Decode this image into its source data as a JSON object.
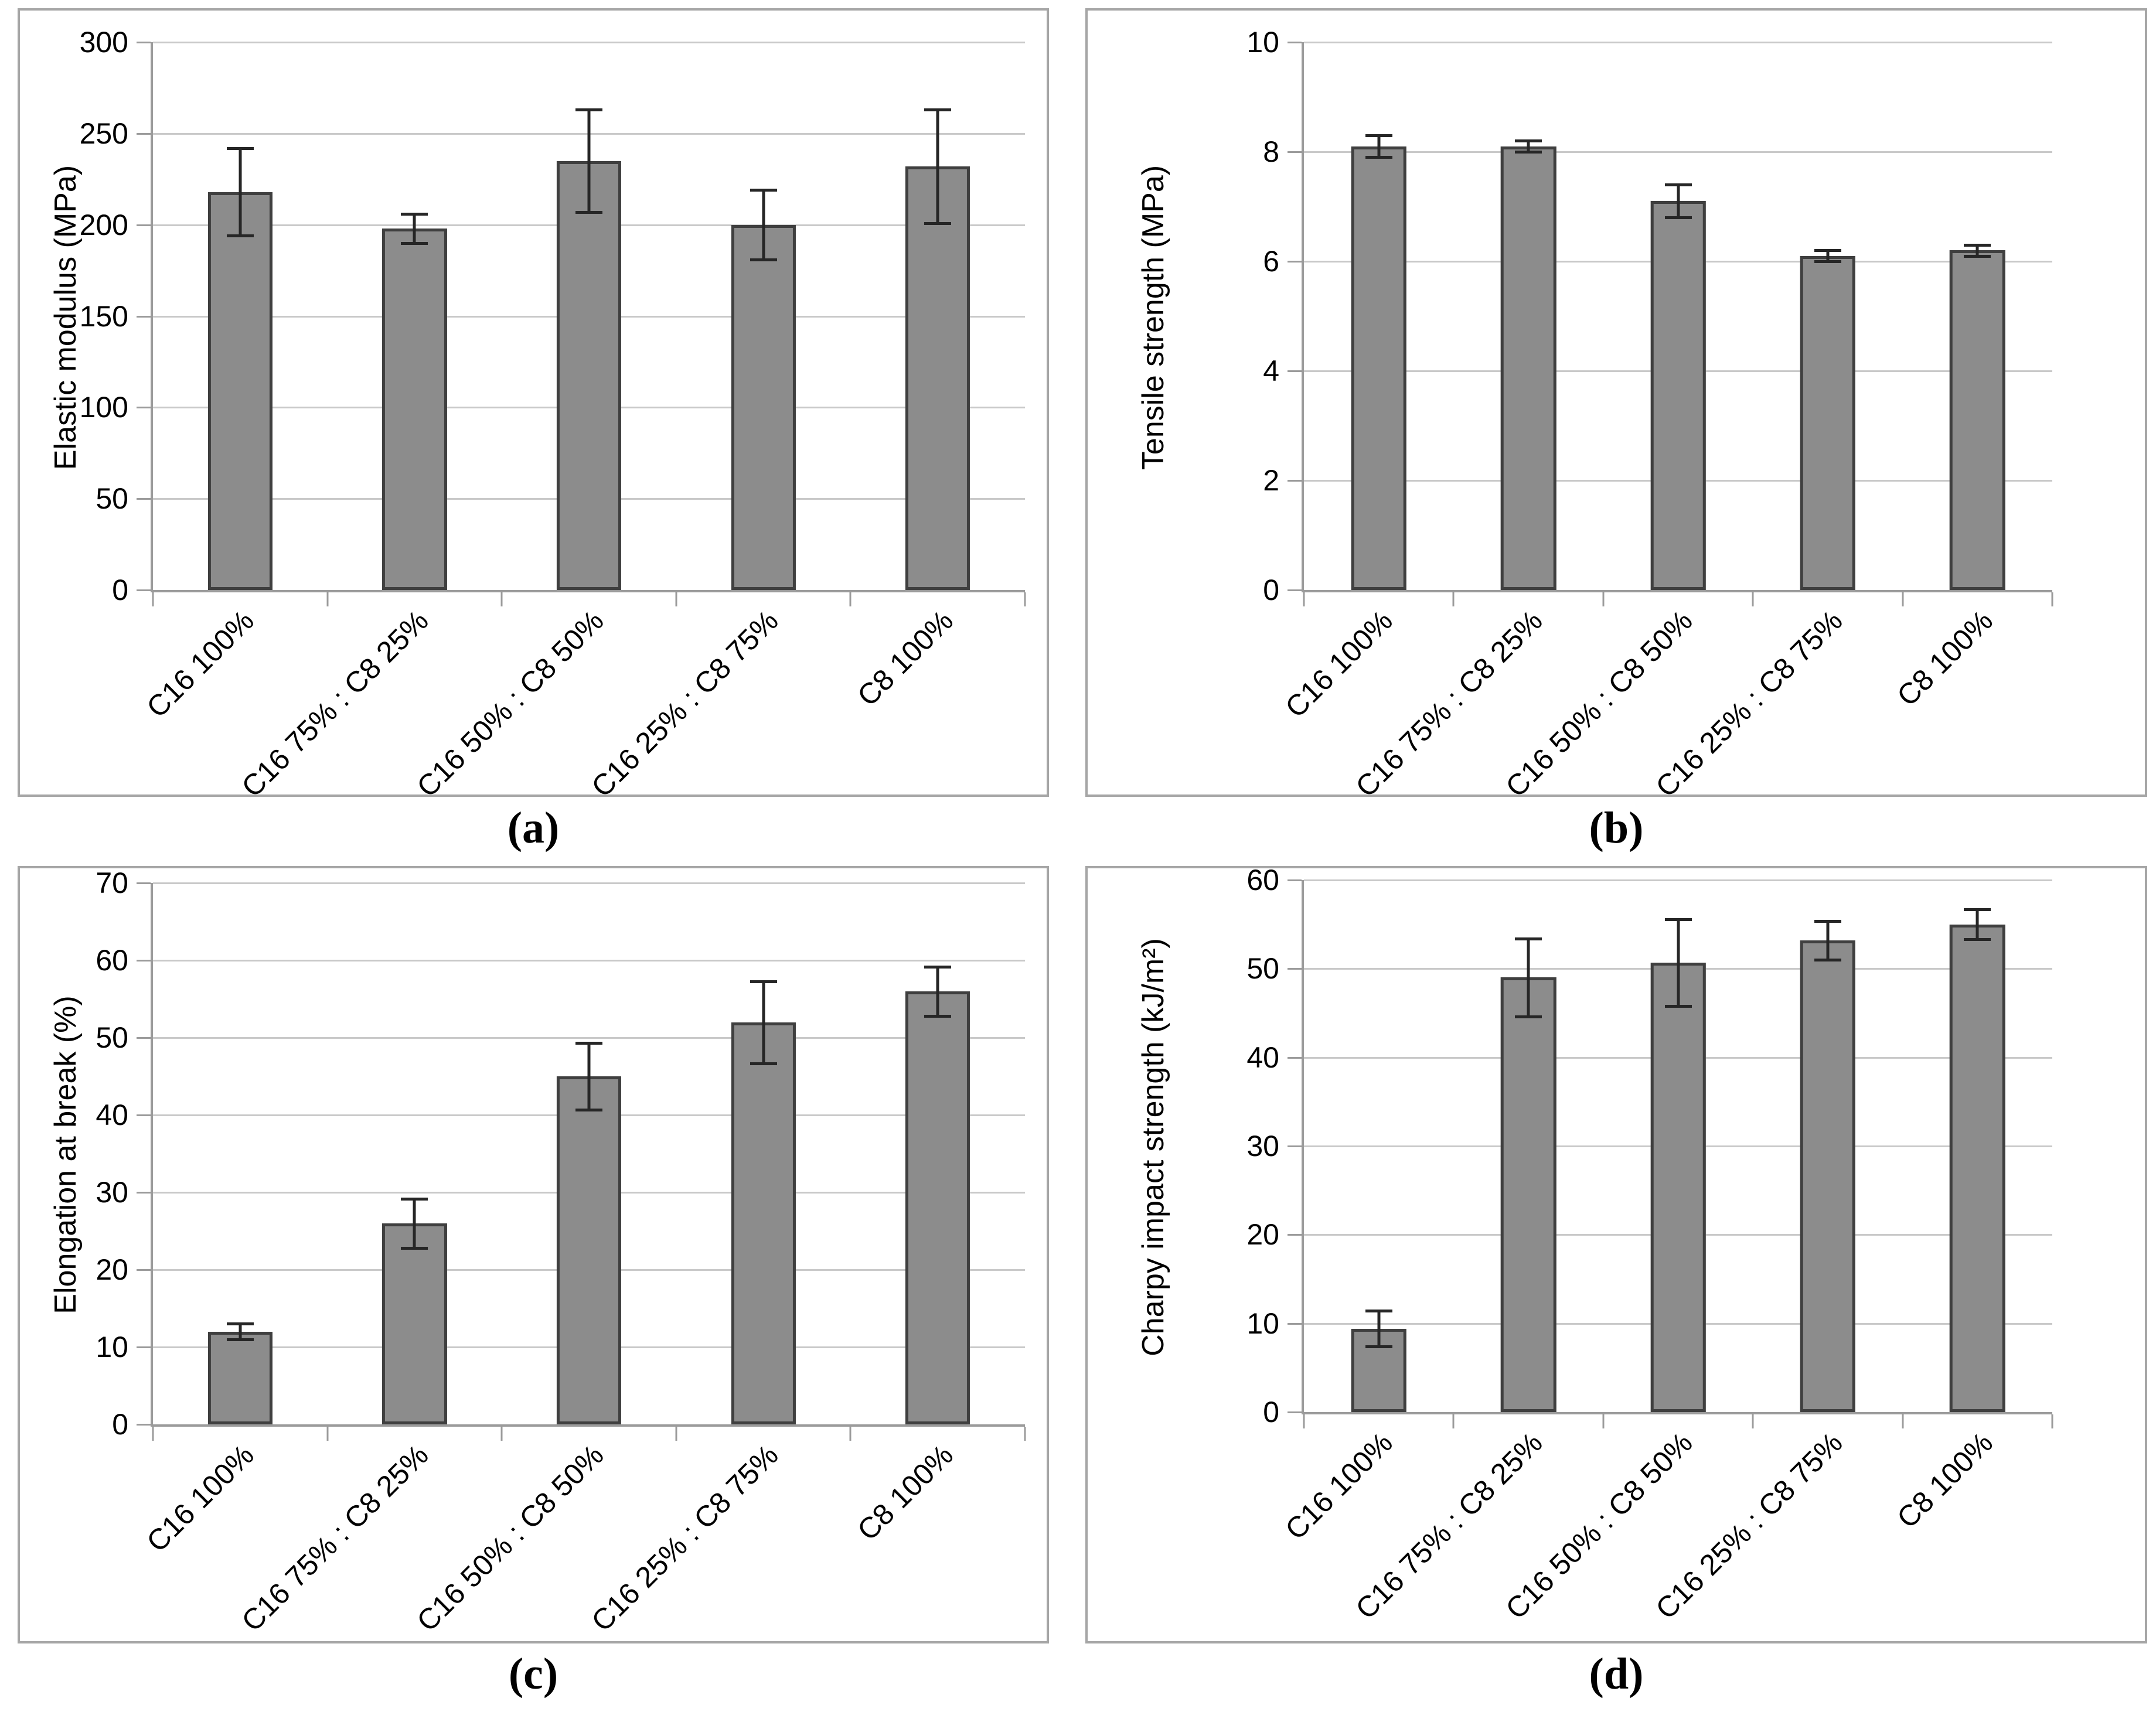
{
  "figure": {
    "panels": [
      {
        "tag": "(a)"
      },
      {
        "tag": "(b)"
      },
      {
        "tag": "(c)"
      },
      {
        "tag": "(d)"
      }
    ]
  },
  "colors": {
    "bar_fill": "#8c8c8c",
    "bar_border": "#3f3f3f",
    "error_bar": "#262626",
    "gridline": "#c9c9c9",
    "axis_line": "#9b9b9b",
    "panel_border": "#a6a6a6",
    "text": "#000000"
  },
  "chart_data": [
    {
      "id": "a",
      "type": "bar",
      "title": "",
      "xlabel": "",
      "ylabel": "Elastic modulus (MPa)",
      "categories": [
        "C16 100%",
        "C16 75% : C8 25%",
        "C16 50% : C8 50%",
        "C16 25% : C8 75%",
        "C8 100%"
      ],
      "values": [
        218,
        198,
        235,
        200,
        232
      ],
      "errors": [
        24,
        8,
        28,
        19,
        31
      ],
      "ylim": [
        0,
        300
      ],
      "ytick_step": 50,
      "grid": true,
      "legend": "none"
    },
    {
      "id": "b",
      "type": "bar",
      "title": "",
      "xlabel": "",
      "ylabel": "Tensile strength (MPa)",
      "categories": [
        "C16 100%",
        "C16 75% : C8 25%",
        "C16 50% : C8 50%",
        "C16 25% : C8 75%",
        "C8 100%"
      ],
      "values": [
        8.1,
        8.1,
        7.1,
        6.1,
        6.2
      ],
      "errors": [
        0.2,
        0.1,
        0.3,
        0.1,
        0.1
      ],
      "ylim": [
        0,
        10
      ],
      "ytick_step": 2,
      "grid": true,
      "legend": "none"
    },
    {
      "id": "c",
      "type": "bar",
      "title": "",
      "xlabel": "",
      "ylabel": "Elongation at break (%)",
      "categories": [
        "C16 100%",
        "C16 75% : C8 25%",
        "C16 50% : C8 50%",
        "C16 25% : C8 75%",
        "C8 100%"
      ],
      "values": [
        12,
        26,
        45,
        52,
        56
      ],
      "errors": [
        1,
        3.2,
        4.3,
        5.3,
        3.2
      ],
      "ylim": [
        0,
        70
      ],
      "ytick_step": 10,
      "grid": true,
      "legend": "none"
    },
    {
      "id": "d",
      "type": "bar",
      "title": "",
      "xlabel": "",
      "ylabel": "Charpy impact strength (kJ/m²)",
      "categories": [
        "C16 100%",
        "C16 75% : C8 25%",
        "C16 50% : C8 50%",
        "C16 25% : C8 75%",
        "C8 100%"
      ],
      "values": [
        9.4,
        49,
        50.7,
        53.2,
        55
      ],
      "errors": [
        2,
        4.4,
        4.9,
        2.2,
        1.7
      ],
      "ylim": [
        0,
        60
      ],
      "ytick_step": 10,
      "grid": true,
      "legend": "none"
    }
  ]
}
